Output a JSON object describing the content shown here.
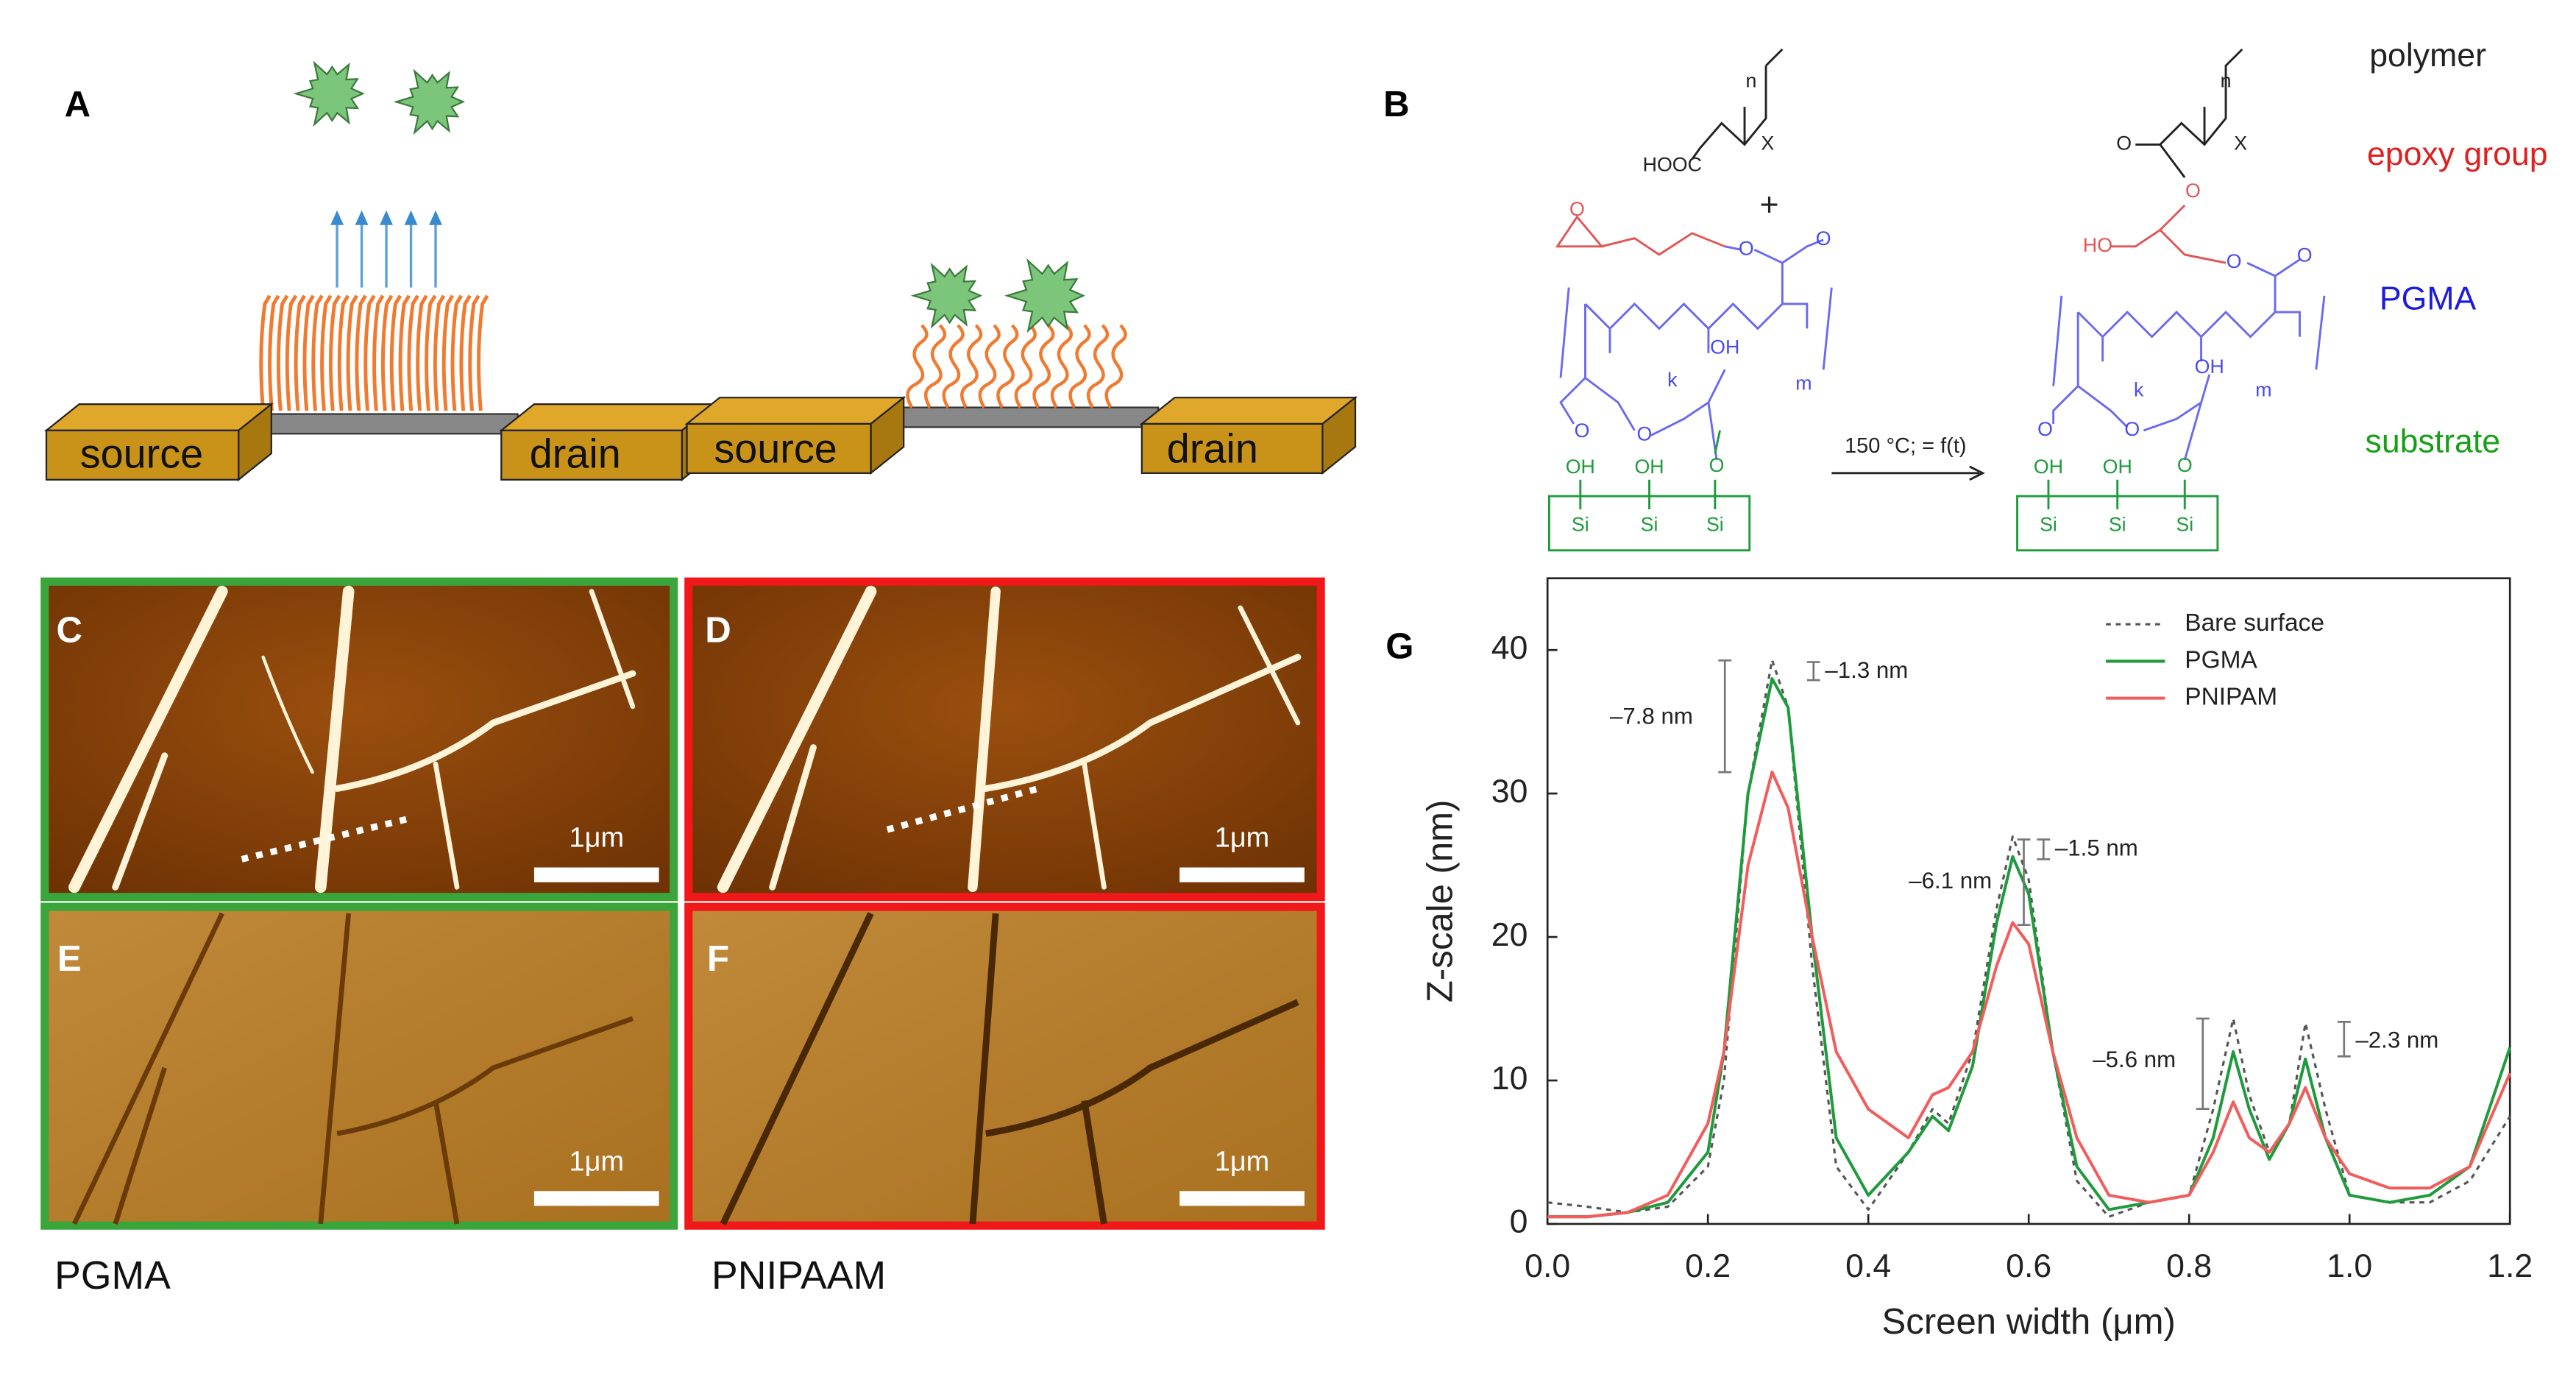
{
  "panel_labels": [
    "A",
    "B",
    "C",
    "D",
    "E",
    "F",
    "G"
  ],
  "device_labels": [
    "source",
    "drain",
    "source",
    "drain"
  ],
  "scheme": {
    "legend": [
      "polymer",
      "epoxy group",
      "PGMA",
      "substrate"
    ],
    "condition": "150 °C; = f(t)",
    "atoms": [
      "n",
      "X",
      "HOOC",
      "+",
      "O",
      "O",
      "O",
      "k",
      "m",
      "O",
      "O",
      "OH",
      "OH",
      "OH",
      "O",
      "Si",
      "Si",
      "Si",
      "n",
      "X",
      "O",
      "O",
      "HO",
      "O",
      "O",
      "k",
      "m",
      "O",
      "O",
      "OH",
      "OH",
      "OH",
      "O",
      "Si",
      "Si",
      "Si"
    ]
  },
  "afm": {
    "scale_bars": [
      "1μm",
      "1μm",
      "1μm",
      "1μm"
    ],
    "captions": [
      "PGMA",
      "PNIPAAM"
    ]
  },
  "chart_data": {
    "type": "line",
    "xlabel": "Screen width (μm)",
    "ylabel": "Z-scale (nm)",
    "xlim": [
      0,
      1.2
    ],
    "ylim": [
      0,
      45
    ],
    "xticks": [
      {
        "value": 0,
        "label": "0.0"
      },
      0.2,
      0.4,
      0.6,
      0.8,
      {
        "value": 1,
        "label": "1.0"
      },
      1.2
    ],
    "yticks": [
      0,
      10,
      20,
      30,
      40
    ],
    "x": [
      0,
      0.05,
      0.1,
      0.15,
      0.2,
      0.22,
      0.25,
      0.28,
      0.3,
      0.33,
      0.36,
      0.4,
      0.45,
      0.48,
      0.5,
      0.53,
      0.56,
      0.58,
      0.6,
      0.63,
      0.66,
      0.7,
      0.75,
      0.8,
      0.83,
      0.855,
      0.875,
      0.9,
      0.925,
      0.945,
      0.97,
      1.0,
      1.05,
      1.1,
      1.15,
      1.2
    ],
    "series": [
      {
        "name": "Bare surface",
        "color": "#555555",
        "dash": true,
        "values": [
          1.5,
          1.2,
          0.8,
          1.2,
          4,
          10,
          30,
          39.3,
          36,
          18,
          4,
          1,
          5,
          8,
          7,
          12,
          22,
          27,
          24,
          12,
          3,
          0.5,
          1.5,
          2,
          8,
          14.3,
          9,
          5,
          7,
          14,
          8,
          2,
          1.5,
          1.5,
          3,
          7.5
        ]
      },
      {
        "name": "PGMA",
        "color": "#1e9b3c",
        "dash": false,
        "values": [
          0.5,
          0.5,
          0.8,
          1.5,
          5,
          12,
          30,
          38,
          36,
          20,
          6,
          2,
          5,
          7.5,
          6.5,
          11,
          21,
          25.6,
          23,
          12,
          4,
          1,
          1.5,
          2,
          6,
          12,
          8,
          4.5,
          7,
          11.5,
          6,
          2,
          1.5,
          2,
          4,
          12.3
        ]
      },
      {
        "name": "PNIPAM",
        "color": "#f25c5c",
        "dash": false,
        "values": [
          0.5,
          0.5,
          0.8,
          2,
          7,
          12,
          25,
          31.5,
          29,
          20,
          12,
          8,
          6,
          9,
          9.5,
          12,
          18,
          21,
          19.5,
          12,
          6,
          2,
          1.5,
          2,
          5,
          8.5,
          6,
          5,
          7,
          9.5,
          6,
          3.5,
          2.5,
          2.5,
          4,
          10.5
        ]
      }
    ],
    "annotations": [
      "–7.8 nm",
      "–1.3 nm",
      "–6.1 nm",
      "–1.5 nm",
      "–5.6 nm",
      "–2.3 nm"
    ],
    "legend": "upper right",
    "grid": false
  }
}
